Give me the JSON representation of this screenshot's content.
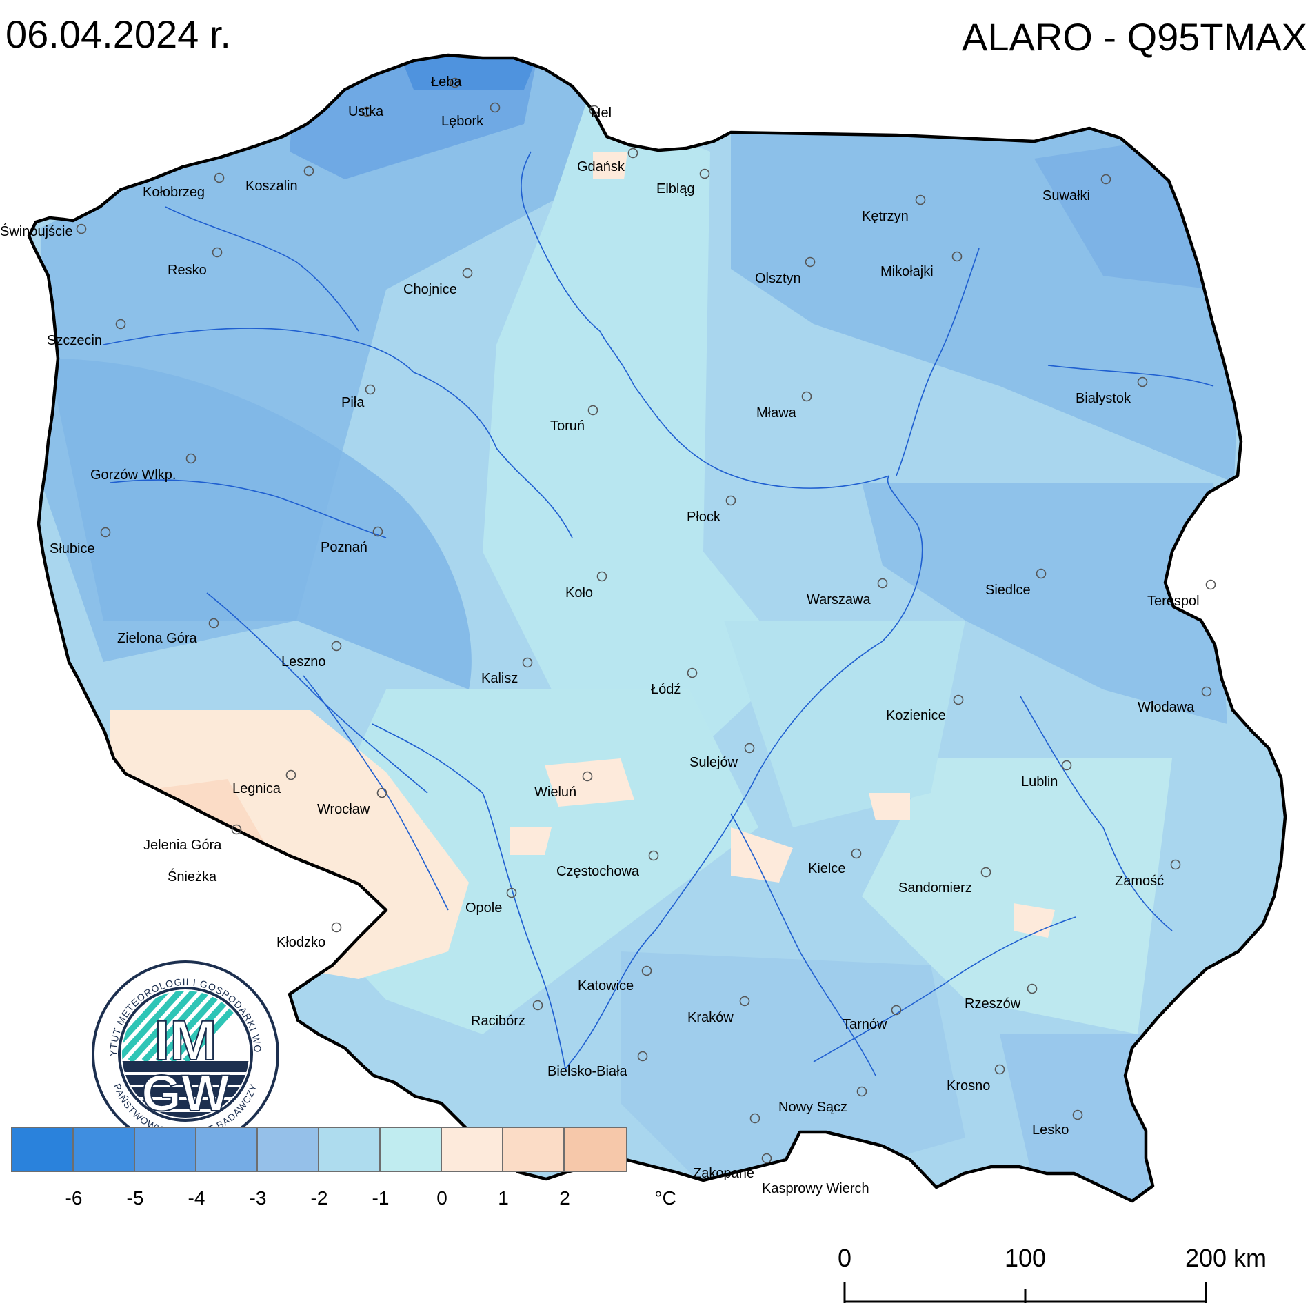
{
  "header": {
    "date": "06.04.2024 r.",
    "product": "ALARO - Q95TMAX"
  },
  "legend": {
    "colors": [
      "#2a82dc",
      "#3f8ee0",
      "#5a9be2",
      "#75ace5",
      "#95c0e9",
      "#aedcee",
      "#c0ecf0",
      "#fdeadb",
      "#fbdcc6",
      "#f6c8aa"
    ],
    "ticks": [
      "-6",
      "-5",
      "-4",
      "-3",
      "-2",
      "-1",
      "0",
      "1",
      "2"
    ],
    "unit": "°C"
  },
  "scale": {
    "labels": [
      "0",
      "100",
      "200 km"
    ]
  },
  "logo": {
    "ring_text": "INSTYTUT METEOROLOGII I GOSPODARKI WODNEJ",
    "ring_text_bottom": "PAŃSTWOWY INSTYTUT BADAWCZY",
    "line1": "IM",
    "line2": "GW"
  },
  "cities": [
    {
      "name": "Łeba"
    },
    {
      "name": "Ustka"
    },
    {
      "name": "Lębork"
    },
    {
      "name": "Hel"
    },
    {
      "name": "Gdańsk"
    },
    {
      "name": "Elbląg"
    },
    {
      "name": "Kołobrzeg"
    },
    {
      "name": "Koszalin"
    },
    {
      "name": "Świnoujście"
    },
    {
      "name": "Kętrzyn"
    },
    {
      "name": "Suwałki"
    },
    {
      "name": "Resko"
    },
    {
      "name": "Chojnice"
    },
    {
      "name": "Olsztyn"
    },
    {
      "name": "Mikołajki"
    },
    {
      "name": "Szczecin"
    },
    {
      "name": "Piła"
    },
    {
      "name": "Toruń"
    },
    {
      "name": "Mława"
    },
    {
      "name": "Białystok"
    },
    {
      "name": "Gorzów Wlkp."
    },
    {
      "name": "Płock"
    },
    {
      "name": "Słubice"
    },
    {
      "name": "Poznań"
    },
    {
      "name": "Koło"
    },
    {
      "name": "Warszawa"
    },
    {
      "name": "Siedlce"
    },
    {
      "name": "Terespol"
    },
    {
      "name": "Zielona Góra"
    },
    {
      "name": "Leszno"
    },
    {
      "name": "Kalisz"
    },
    {
      "name": "Łódź"
    },
    {
      "name": "Włodawa"
    },
    {
      "name": "Kozienice"
    },
    {
      "name": "Sulejów"
    },
    {
      "name": "Legnica"
    },
    {
      "name": "Wrocław"
    },
    {
      "name": "Wieluń"
    },
    {
      "name": "Lublin"
    },
    {
      "name": "Jelenia Góra"
    },
    {
      "name": "Śnieżka"
    },
    {
      "name": "Częstochowa"
    },
    {
      "name": "Kielce"
    },
    {
      "name": "Sandomierz"
    },
    {
      "name": "Zamość"
    },
    {
      "name": "Opole"
    },
    {
      "name": "Kłodzko"
    },
    {
      "name": "Katowice"
    },
    {
      "name": "Racibórz"
    },
    {
      "name": "Kraków"
    },
    {
      "name": "Tarnów"
    },
    {
      "name": "Rzeszów"
    },
    {
      "name": "Bielsko-Biała"
    },
    {
      "name": "Krosno"
    },
    {
      "name": "Nowy Sącz"
    },
    {
      "name": "Lesko"
    },
    {
      "name": "Zakopane"
    },
    {
      "name": "Kasprowy Wierch"
    }
  ]
}
